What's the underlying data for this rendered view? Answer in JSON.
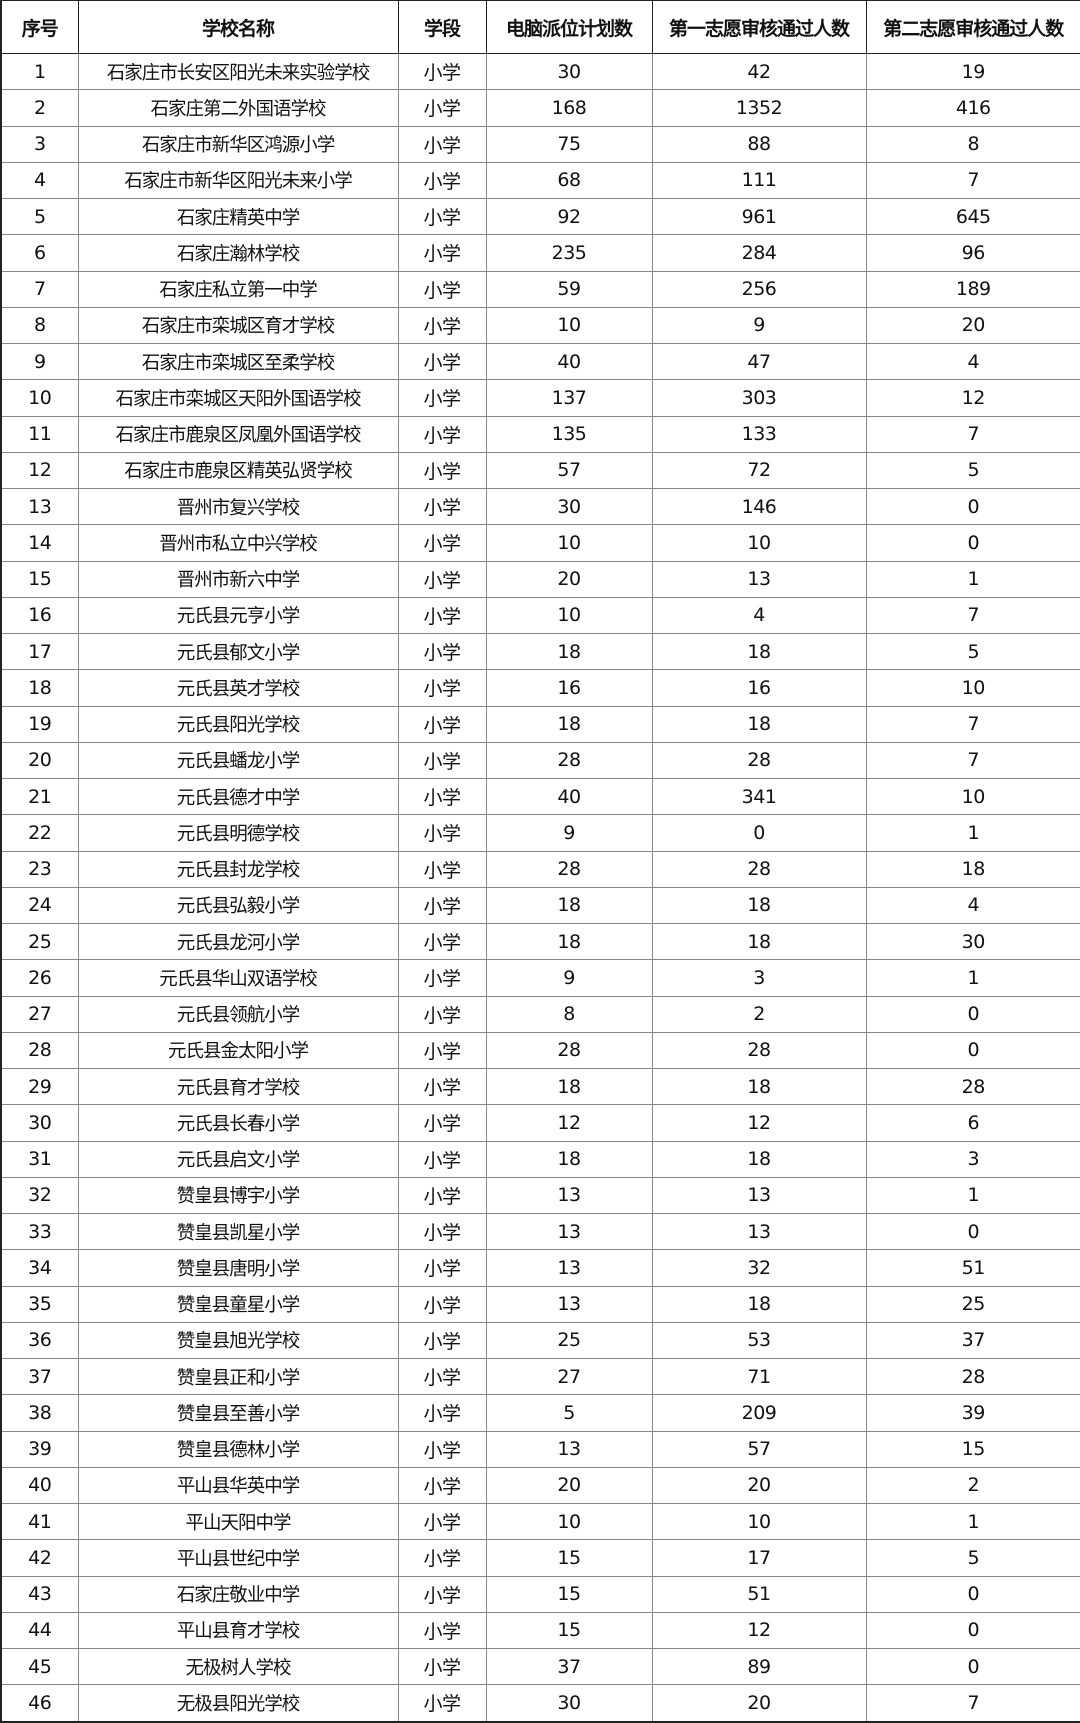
{
  "headers": [
    "序号",
    "学校名称",
    "学段",
    "电脑派位计划数",
    "第一志愿审核通过人数",
    "第二志愿审核通过人数"
  ],
  "rows": [
    [
      "1",
      "石家庄市长安区阳光未来实验学校",
      "小学",
      "30",
      "42",
      "19"
    ],
    [
      "2",
      "石家庄第二外国语学校",
      "小学",
      "168",
      "1352",
      "416"
    ],
    [
      "3",
      "石家庄市新华区鸿源小学",
      "小学",
      "75",
      "88",
      "8"
    ],
    [
      "4",
      "石家庄市新华区阳光未来小学",
      "小学",
      "68",
      "111",
      "7"
    ],
    [
      "5",
      "石家庄精英中学",
      "小学",
      "92",
      "961",
      "645"
    ],
    [
      "6",
      "石家庄瀚林学校",
      "小学",
      "235",
      "284",
      "96"
    ],
    [
      "7",
      "石家庄私立第一中学",
      "小学",
      "59",
      "256",
      "189"
    ],
    [
      "8",
      "石家庄市栾城区育才学校",
      "小学",
      "10",
      "9",
      "20"
    ],
    [
      "9",
      "石家庄市栾城区至柔学校",
      "小学",
      "40",
      "47",
      "4"
    ],
    [
      "10",
      "石家庄市栾城区天阳外国语学校",
      "小学",
      "137",
      "303",
      "12"
    ],
    [
      "11",
      "石家庄市鹿泉区凤凰外国语学校",
      "小学",
      "135",
      "133",
      "7"
    ],
    [
      "12",
      "石家庄市鹿泉区精英弘贤学校",
      "小学",
      "57",
      "72",
      "5"
    ],
    [
      "13",
      "晋州市复兴学校",
      "小学",
      "30",
      "146",
      "0"
    ],
    [
      "14",
      "晋州市私立中兴学校",
      "小学",
      "10",
      "10",
      "0"
    ],
    [
      "15",
      "晋州市新六中学",
      "小学",
      "20",
      "13",
      "1"
    ],
    [
      "16",
      "元氏县元亨小学",
      "小学",
      "10",
      "4",
      "7"
    ],
    [
      "17",
      "元氏县郁文小学",
      "小学",
      "18",
      "18",
      "5"
    ],
    [
      "18",
      "元氏县英才学校",
      "小学",
      "16",
      "16",
      "10"
    ],
    [
      "19",
      "元氏县阳光学校",
      "小学",
      "18",
      "18",
      "7"
    ],
    [
      "20",
      "元氏县蟠龙小学",
      "小学",
      "28",
      "28",
      "7"
    ],
    [
      "21",
      "元氏县德才中学",
      "小学",
      "40",
      "341",
      "10"
    ],
    [
      "22",
      "元氏县明德学校",
      "小学",
      "9",
      "0",
      "1"
    ],
    [
      "23",
      "元氏县封龙学校",
      "小学",
      "28",
      "28",
      "18"
    ],
    [
      "24",
      "元氏县弘毅小学",
      "小学",
      "18",
      "18",
      "4"
    ],
    [
      "25",
      "元氏县龙河小学",
      "小学",
      "18",
      "18",
      "30"
    ],
    [
      "26",
      "元氏县华山双语学校",
      "小学",
      "9",
      "3",
      "1"
    ],
    [
      "27",
      "元氏县领航小学",
      "小学",
      "8",
      "2",
      "0"
    ],
    [
      "28",
      "元氏县金太阳小学",
      "小学",
      "28",
      "28",
      "0"
    ],
    [
      "29",
      "元氏县育才学校",
      "小学",
      "18",
      "18",
      "28"
    ],
    [
      "30",
      "元氏县长春小学",
      "小学",
      "12",
      "12",
      "6"
    ],
    [
      "31",
      "元氏县启文小学",
      "小学",
      "18",
      "18",
      "3"
    ],
    [
      "32",
      "赞皇县博宇小学",
      "小学",
      "13",
      "13",
      "1"
    ],
    [
      "33",
      "赞皇县凯星小学",
      "小学",
      "13",
      "13",
      "0"
    ],
    [
      "34",
      "赞皇县唐明小学",
      "小学",
      "13",
      "32",
      "51"
    ],
    [
      "35",
      "赞皇县童星小学",
      "小学",
      "13",
      "18",
      "25"
    ],
    [
      "36",
      "赞皇县旭光学校",
      "小学",
      "25",
      "53",
      "37"
    ],
    [
      "37",
      "赞皇县正和小学",
      "小学",
      "27",
      "71",
      "28"
    ],
    [
      "38",
      "赞皇县至善小学",
      "小学",
      "5",
      "209",
      "39"
    ],
    [
      "39",
      "赞皇县德林小学",
      "小学",
      "13",
      "57",
      "15"
    ],
    [
      "40",
      "平山县华英中学",
      "小学",
      "20",
      "20",
      "2"
    ],
    [
      "41",
      "平山天阳中学",
      "小学",
      "10",
      "10",
      "1"
    ],
    [
      "42",
      "平山县世纪中学",
      "小学",
      "15",
      "17",
      "5"
    ],
    [
      "43",
      "石家庄敬业中学",
      "小学",
      "15",
      "51",
      "0"
    ],
    [
      "44",
      "平山县育才学校",
      "小学",
      "15",
      "12",
      "0"
    ],
    [
      "45",
      "无极树人学校",
      "小学",
      "37",
      "89",
      "0"
    ],
    [
      "46",
      "无极县阳光学校",
      "小学",
      "30",
      "20",
      "7"
    ]
  ]
}
